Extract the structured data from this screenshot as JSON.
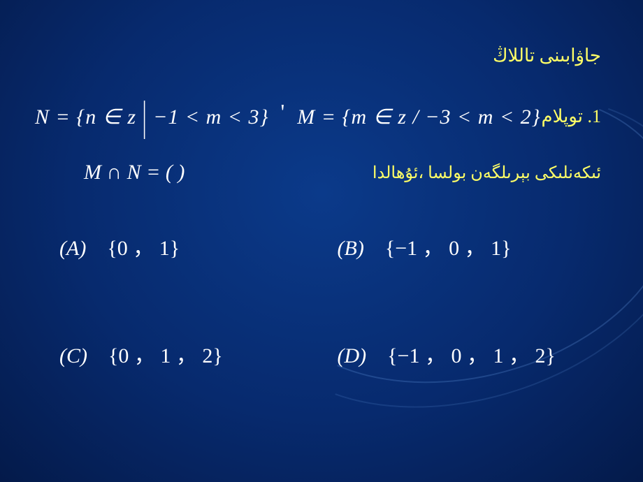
{
  "header_text": "جاۋابىنى تاللاڭ",
  "header_color": "#ffff66",
  "question": {
    "number_label": "1.  توپلام",
    "n_def": "N = {n ∈ z  ",
    "n_cond": " −1 < m < 3}",
    "separator": "'",
    "m_def": "M = {m ∈ z / −3 < m < 2}",
    "expression": "M ∩ N = (         )",
    "condition_text": "ئىكەنلىكى بېرىلگەن بولسا ،ئۇھالدا"
  },
  "options": {
    "A": {
      "label": "(A)",
      "set": "{0 ， 1}"
    },
    "B": {
      "label": "(B)",
      "set": "{−1 ， 0 ， 1}"
    },
    "C": {
      "label": "(C)",
      "set": "{0 ， 1 ， 2}"
    },
    "D": {
      "label": "(D)",
      "set": "{−1 ， 0 ， 1 ， 2}"
    }
  },
  "colors": {
    "text": "#ffffff",
    "accent": "#ffff66",
    "bg_center": "#0b3a8a",
    "bg_edge": "#041a4a"
  },
  "fontsize": {
    "header": 26,
    "math": 30,
    "options": 30,
    "condition": 24
  }
}
